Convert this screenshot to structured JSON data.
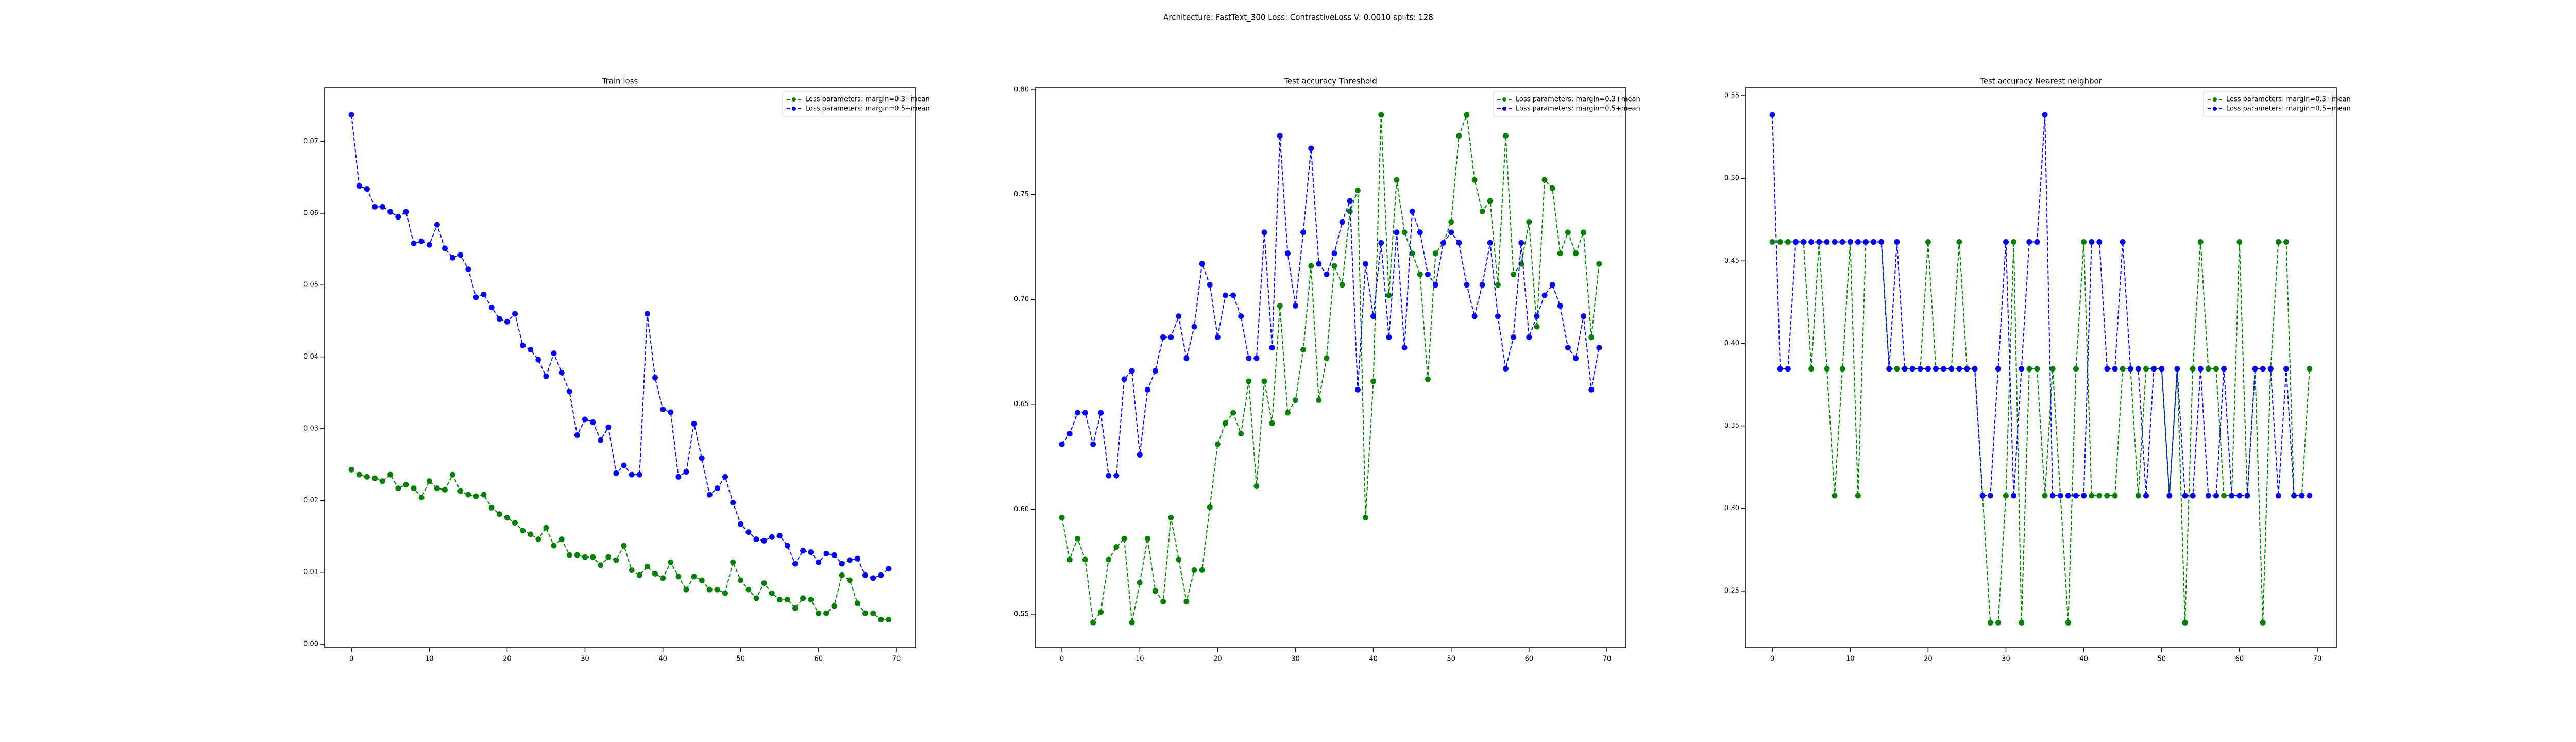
{
  "suptitle": "Architecture: FastText_300 Loss: ContrastiveLoss V: 0.0010 splits: 128",
  "chart_data": [
    {
      "type": "line",
      "title": "Train loss",
      "legend": "upper right",
      "x": [
        0,
        1,
        2,
        3,
        4,
        5,
        6,
        7,
        8,
        9,
        10,
        11,
        12,
        13,
        14,
        15,
        16,
        17,
        18,
        19,
        20,
        21,
        22,
        23,
        24,
        25,
        26,
        27,
        28,
        29,
        30,
        31,
        32,
        33,
        34,
        35,
        36,
        37,
        38,
        39,
        40,
        41,
        42,
        43,
        44,
        45,
        46,
        47,
        48,
        49,
        50,
        51,
        52,
        53,
        54,
        55,
        56,
        57,
        58,
        59,
        60,
        61,
        62,
        63,
        64,
        65,
        66,
        67,
        68,
        69
      ],
      "xlim": [
        -3.45,
        72.45
      ],
      "xticks": [
        0,
        10,
        20,
        30,
        40,
        50,
        60,
        70
      ],
      "ylim": [
        -0.0005,
        0.0775
      ],
      "yticks": [
        {
          "value": 0,
          "label": "0.00"
        },
        0.01,
        0.02,
        0.03,
        0.04,
        0.05,
        0.06,
        0.07
      ],
      "series": [
        {
          "name": "Loss parameters: margin=0.3+mean",
          "color": "#008000",
          "values": [
            0.0243,
            0.0236,
            0.0233,
            0.0231,
            0.0227,
            0.0236,
            0.0217,
            0.0222,
            0.0217,
            0.0204,
            0.0227,
            0.0217,
            0.0215,
            0.0236,
            0.0213,
            0.0208,
            0.0206,
            0.0208,
            0.019,
            0.0181,
            0.0176,
            0.0169,
            0.0158,
            0.0153,
            0.0146,
            0.0162,
            0.0137,
            0.0146,
            0.0124,
            0.0124,
            0.0121,
            0.0121,
            0.011,
            0.0121,
            0.0117,
            0.0137,
            0.0103,
            0.0096,
            0.0108,
            0.0098,
            0.0092,
            0.0114,
            0.0094,
            0.0076,
            0.0094,
            0.0089,
            0.0076,
            0.0076,
            0.0071,
            0.0114,
            0.0089,
            0.0076,
            0.0064,
            0.0085,
            0.0071,
            0.0062,
            0.0062,
            0.005,
            0.0064,
            0.0062,
            0.0043,
            0.0043,
            0.0053,
            0.0096,
            0.0089,
            0.0057,
            0.0043,
            0.0043,
            0.0034,
            0.0034
          ]
        },
        {
          "name": "Loss parameters: margin=0.5+mean",
          "color": "#0000ff",
          "values": [
            0.0737,
            0.0638,
            0.0634,
            0.0609,
            0.0609,
            0.0602,
            0.0595,
            0.0602,
            0.0558,
            0.0561,
            0.0556,
            0.0584,
            0.0551,
            0.0538,
            0.0542,
            0.0522,
            0.0483,
            0.0487,
            0.0469,
            0.0453,
            0.0449,
            0.046,
            0.0416,
            0.041,
            0.0396,
            0.0373,
            0.0405,
            0.0378,
            0.0352,
            0.0291,
            0.0313,
            0.0309,
            0.0284,
            0.0302,
            0.0238,
            0.0249,
            0.0236,
            0.0236,
            0.046,
            0.0371,
            0.0327,
            0.0323,
            0.0233,
            0.024,
            0.0307,
            0.0259,
            0.0208,
            0.0217,
            0.0233,
            0.0197,
            0.0167,
            0.0156,
            0.0146,
            0.0144,
            0.0149,
            0.0151,
            0.0137,
            0.0112,
            0.013,
            0.0128,
            0.0114,
            0.0126,
            0.0124,
            0.0112,
            0.0117,
            0.0119,
            0.0096,
            0.0092,
            0.0096,
            0.0105
          ]
        }
      ]
    },
    {
      "type": "line",
      "title": "Test accuracy Threshold",
      "legend": "upper right",
      "x": [
        0,
        1,
        2,
        3,
        4,
        5,
        6,
        7,
        8,
        9,
        10,
        11,
        12,
        13,
        14,
        15,
        16,
        17,
        18,
        19,
        20,
        21,
        22,
        23,
        24,
        25,
        26,
        27,
        28,
        29,
        30,
        31,
        32,
        33,
        34,
        35,
        36,
        37,
        38,
        39,
        40,
        41,
        42,
        43,
        44,
        45,
        46,
        47,
        48,
        49,
        50,
        51,
        52,
        53,
        54,
        55,
        56,
        57,
        58,
        59,
        60,
        61,
        62,
        63,
        64,
        65,
        66,
        67,
        68,
        69
      ],
      "xlim": [
        -3.45,
        72.45
      ],
      "xticks": [
        0,
        10,
        20,
        30,
        40,
        50,
        60,
        70
      ],
      "ylim": [
        0.534,
        0.801
      ],
      "yticks": [
        0.55,
        {
          "value": 0.6,
          "label": "0.60"
        },
        0.65,
        {
          "value": 0.7,
          "label": "0.70"
        },
        0.75,
        {
          "value": 0.8,
          "label": "0.80"
        }
      ],
      "series": [
        {
          "name": "Loss parameters: margin=0.3+mean",
          "color": "#008000",
          "values": [
            0.596,
            0.576,
            0.586,
            0.576,
            0.546,
            0.551,
            0.576,
            0.582,
            0.586,
            0.546,
            0.565,
            0.586,
            0.561,
            0.556,
            0.596,
            0.576,
            0.556,
            0.571,
            0.571,
            0.601,
            0.631,
            0.641,
            0.646,
            0.636,
            0.661,
            0.611,
            0.661,
            0.641,
            0.697,
            0.646,
            0.652,
            0.676,
            0.716,
            0.652,
            0.672,
            0.716,
            0.707,
            0.742,
            0.752,
            0.596,
            0.661,
            0.788,
            0.702,
            0.757,
            0.732,
            0.722,
            0.712,
            0.662,
            0.722,
            0.727,
            0.737,
            0.778,
            0.788,
            0.757,
            0.742,
            0.747,
            0.707,
            0.778,
            0.712,
            0.717,
            0.737,
            0.687,
            0.757,
            0.753,
            0.722,
            0.732,
            0.722,
            0.732,
            0.682,
            0.717
          ]
        },
        {
          "name": "Loss parameters: margin=0.5+mean",
          "color": "#0000ff",
          "values": [
            0.631,
            0.636,
            0.646,
            0.646,
            0.631,
            0.646,
            0.616,
            0.616,
            0.662,
            0.666,
            0.626,
            0.657,
            0.666,
            0.682,
            0.682,
            0.692,
            0.672,
            0.687,
            0.717,
            0.707,
            0.682,
            0.702,
            0.702,
            0.692,
            0.672,
            0.672,
            0.732,
            0.677,
            0.778,
            0.722,
            0.697,
            0.732,
            0.772,
            0.717,
            0.712,
            0.722,
            0.737,
            0.747,
            0.657,
            0.717,
            0.692,
            0.727,
            0.682,
            0.732,
            0.677,
            0.742,
            0.732,
            0.712,
            0.707,
            0.727,
            0.732,
            0.727,
            0.707,
            0.692,
            0.707,
            0.727,
            0.692,
            0.667,
            0.682,
            0.727,
            0.682,
            0.692,
            0.702,
            0.707,
            0.697,
            0.677,
            0.672,
            0.692,
            0.657,
            0.677
          ]
        }
      ]
    },
    {
      "type": "line",
      "title": "Test accuracy Nearest neighbor",
      "legend": "upper right",
      "x": [
        0,
        1,
        2,
        3,
        4,
        5,
        6,
        7,
        8,
        9,
        10,
        11,
        12,
        13,
        14,
        15,
        16,
        17,
        18,
        19,
        20,
        21,
        22,
        23,
        24,
        25,
        26,
        27,
        28,
        29,
        30,
        31,
        32,
        33,
        34,
        35,
        36,
        37,
        38,
        39,
        40,
        41,
        42,
        43,
        44,
        45,
        46,
        47,
        48,
        49,
        50,
        51,
        52,
        53,
        54,
        55,
        56,
        57,
        58,
        59,
        60,
        61,
        62,
        63,
        64,
        65,
        66,
        67,
        68,
        69
      ],
      "xlim": [
        -3.45,
        72.45
      ],
      "xticks": [
        0,
        10,
        20,
        30,
        40,
        50,
        60,
        70
      ],
      "ylim": [
        0.2156,
        0.555
      ],
      "yticks": [
        0.25,
        {
          "value": 0.3,
          "label": "0.30"
        },
        0.35,
        {
          "value": 0.4,
          "label": "0.40"
        },
        0.45,
        {
          "value": 0.5,
          "label": "0.50"
        },
        0.55
      ],
      "series": [
        {
          "name": "Loss parameters: margin=0.3+mean",
          "color": "#008000",
          "values": [
            0.4615,
            0.4615,
            0.4615,
            0.4615,
            0.4615,
            0.3846,
            0.4615,
            0.3846,
            0.3077,
            0.3846,
            0.4615,
            0.3077,
            0.4615,
            0.4615,
            0.4615,
            0.3846,
            0.3846,
            0.3846,
            0.3846,
            0.3846,
            0.4615,
            0.3846,
            0.3846,
            0.3846,
            0.4615,
            0.3846,
            0.3846,
            0.3077,
            0.2308,
            0.2308,
            0.3077,
            0.4615,
            0.2308,
            0.3846,
            0.3846,
            0.3077,
            0.3846,
            0.3077,
            0.2308,
            0.3846,
            0.4615,
            0.3077,
            0.3077,
            0.3077,
            0.3077,
            0.3846,
            0.3846,
            0.3077,
            0.3846,
            0.3846,
            0.3846,
            0.3077,
            0.3846,
            0.2308,
            0.3846,
            0.4615,
            0.3846,
            0.3846,
            0.3077,
            0.3077,
            0.4615,
            0.3077,
            0.3846,
            0.2308,
            0.3846,
            0.4615,
            0.4615,
            0.3077,
            0.3077,
            0.3846
          ]
        },
        {
          "name": "Loss parameters: margin=0.5+mean",
          "color": "#0000ff",
          "values": [
            0.5385,
            0.3846,
            0.3846,
            0.4615,
            0.4615,
            0.4615,
            0.4615,
            0.4615,
            0.4615,
            0.4615,
            0.4615,
            0.4615,
            0.4615,
            0.4615,
            0.4615,
            0.3846,
            0.4615,
            0.3846,
            0.3846,
            0.3846,
            0.3846,
            0.3846,
            0.3846,
            0.3846,
            0.3846,
            0.3846,
            0.3846,
            0.3077,
            0.3077,
            0.3846,
            0.4615,
            0.3077,
            0.3846,
            0.4615,
            0.4615,
            0.5385,
            0.3077,
            0.3077,
            0.3077,
            0.3077,
            0.3077,
            0.4615,
            0.4615,
            0.3846,
            0.3846,
            0.4615,
            0.3846,
            0.3846,
            0.3077,
            0.3846,
            0.3846,
            0.3077,
            0.3846,
            0.3077,
            0.3077,
            0.3846,
            0.3077,
            0.3077,
            0.3846,
            0.3077,
            0.3077,
            0.3077,
            0.3846,
            0.3846,
            0.3846,
            0.3077,
            0.3846,
            0.3077,
            0.3077,
            0.3077
          ]
        }
      ]
    }
  ]
}
